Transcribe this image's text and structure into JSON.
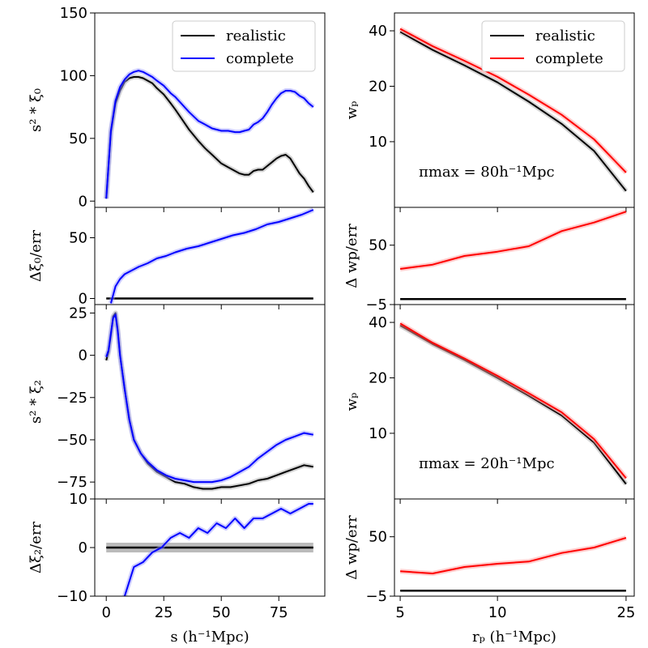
{
  "figure": {
    "left_xlabel": "s (h⁻¹Mpc)",
    "right_xlabel": "rₚ (h⁻¹Mpc)"
  },
  "colors": {
    "realistic": "#000000",
    "complete_left": "#0000ff",
    "complete_right": "#ff0000",
    "band_blue": "#9999ff",
    "band_gray": "#aaaaaa"
  },
  "chart_data": [
    {
      "id": "xi0",
      "type": "line",
      "ylabel": "s² * ξ₀",
      "xlim": [
        -5,
        95
      ],
      "ylim": [
        -5,
        150
      ],
      "yticks": [
        0,
        50,
        100,
        150
      ],
      "xticks": [
        0,
        25,
        50,
        75
      ],
      "legend": {
        "placement": "top-right",
        "entries": [
          "realistic",
          "complete"
        ]
      },
      "series": [
        {
          "name": "realistic",
          "color": "black",
          "x": [
            0,
            2,
            4,
            6,
            8,
            10,
            12,
            14,
            16,
            18,
            20,
            22,
            25,
            28,
            30,
            33,
            36,
            40,
            43,
            46,
            50,
            53,
            56,
            58,
            60,
            62,
            64,
            66,
            68,
            70,
            72,
            74,
            76,
            78,
            80,
            82,
            84,
            86,
            88,
            90
          ],
          "y": [
            2,
            55,
            78,
            88,
            95,
            98,
            99,
            99,
            98,
            96,
            94,
            90,
            85,
            78,
            73,
            65,
            57,
            48,
            42,
            37,
            30,
            27,
            24,
            22,
            21,
            21,
            24,
            25,
            25,
            28,
            31,
            34,
            36,
            37,
            34,
            28,
            22,
            18,
            12,
            7
          ]
        },
        {
          "name": "complete",
          "color": "blue",
          "x": [
            0,
            2,
            4,
            6,
            8,
            10,
            12,
            14,
            16,
            18,
            20,
            22,
            25,
            28,
            30,
            33,
            36,
            40,
            43,
            46,
            50,
            53,
            56,
            58,
            60,
            62,
            64,
            66,
            68,
            70,
            72,
            74,
            76,
            78,
            80,
            82,
            84,
            86,
            88,
            90
          ],
          "y": [
            2,
            56,
            80,
            91,
            97,
            101,
            103,
            104,
            103,
            101,
            99,
            96,
            92,
            86,
            83,
            77,
            71,
            64,
            61,
            58,
            56,
            56,
            55,
            55,
            56,
            57,
            61,
            63,
            66,
            71,
            77,
            82,
            86,
            88,
            88,
            87,
            84,
            82,
            78,
            75
          ]
        }
      ]
    },
    {
      "id": "dxi0",
      "type": "line",
      "ylabel": "Δξ₀/err",
      "xlim": [
        -5,
        95
      ],
      "ylim": [
        -5,
        75
      ],
      "yticks": [
        0,
        50
      ],
      "series": [
        {
          "name": "realistic",
          "color": "black",
          "x": [
            0,
            90
          ],
          "y": [
            0,
            0
          ]
        },
        {
          "name": "complete",
          "color": "blue",
          "x": [
            2,
            4,
            6,
            8,
            10,
            14,
            18,
            22,
            26,
            30,
            35,
            40,
            45,
            50,
            55,
            60,
            65,
            70,
            75,
            80,
            85,
            90
          ],
          "y": [
            -4,
            10,
            16,
            20,
            22,
            26,
            29,
            33,
            35,
            38,
            41,
            43,
            46,
            49,
            52,
            54,
            57,
            61,
            63,
            66,
            69,
            73
          ]
        }
      ]
    },
    {
      "id": "xi2",
      "type": "line",
      "ylabel": "s² * ξ₂",
      "xlim": [
        -5,
        95
      ],
      "ylim": [
        -85,
        30
      ],
      "yticks": [
        25,
        0,
        -25,
        -50,
        -75
      ],
      "series": [
        {
          "name": "realistic",
          "color": "black",
          "x": [
            0,
            1,
            2,
            3,
            4,
            5,
            6,
            8,
            10,
            12,
            15,
            18,
            22,
            26,
            30,
            34,
            38,
            42,
            46,
            50,
            54,
            58,
            62,
            66,
            70,
            74,
            78,
            82,
            86,
            90
          ],
          "y": [
            -3,
            2,
            12,
            23,
            25,
            15,
            0,
            -20,
            -38,
            -50,
            -58,
            -64,
            -69,
            -72,
            -75,
            -76,
            -78,
            -79,
            -79,
            -78,
            -78,
            -77,
            -76,
            -74,
            -73,
            -71,
            -69,
            -67,
            -65,
            -66
          ]
        },
        {
          "name": "complete",
          "color": "blue",
          "x": [
            0,
            1,
            2,
            3,
            4,
            5,
            6,
            8,
            10,
            12,
            15,
            18,
            22,
            26,
            30,
            34,
            38,
            42,
            46,
            50,
            54,
            58,
            62,
            66,
            70,
            74,
            78,
            82,
            86,
            90
          ],
          "y": [
            -1,
            3,
            13,
            22,
            24,
            14,
            0,
            -20,
            -38,
            -50,
            -58,
            -63,
            -68,
            -71,
            -73,
            -74,
            -75,
            -75,
            -75,
            -74,
            -72,
            -69,
            -66,
            -61,
            -57,
            -53,
            -50,
            -48,
            -46,
            -47
          ]
        }
      ]
    },
    {
      "id": "dxi2",
      "type": "line",
      "ylabel": "Δξ₂/err",
      "xlim": [
        -5,
        95
      ],
      "ylim": [
        -10,
        10
      ],
      "yticks": [
        10,
        0,
        -10
      ],
      "series": [
        {
          "name": "realistic",
          "color": "black",
          "x": [
            0,
            90
          ],
          "y": [
            0,
            0
          ]
        },
        {
          "name": "complete",
          "color": "blue",
          "x": [
            8,
            12,
            16,
            20,
            24,
            28,
            32,
            36,
            40,
            44,
            48,
            52,
            56,
            60,
            64,
            68,
            72,
            76,
            80,
            84,
            88,
            90
          ],
          "y": [
            -10,
            -4,
            -3,
            -1,
            0,
            2,
            3,
            2,
            4,
            3,
            5,
            4,
            6,
            4,
            6,
            6,
            7,
            8,
            7,
            8,
            9,
            9
          ]
        }
      ]
    },
    {
      "id": "wp80",
      "type": "line",
      "ylabel": "wₚ",
      "annotation": "πmax = 80h⁻¹Mpc",
      "xscale": "log",
      "yscale": "log",
      "xlim": [
        4.8,
        26.5
      ],
      "ylim": [
        4.4,
        50
      ],
      "yticks": [
        10,
        20,
        40
      ],
      "legend": {
        "placement": "top-right",
        "entries": [
          "realistic",
          "complete"
        ]
      },
      "series": [
        {
          "name": "realistic",
          "color": "black",
          "x": [
            5,
            6.3,
            7.9,
            10,
            12.5,
            15.8,
            19.9,
            25
          ],
          "y": [
            39.5,
            31.5,
            26,
            21,
            16.5,
            12.5,
            8.9,
            5.4
          ]
        },
        {
          "name": "complete",
          "color": "red",
          "x": [
            5,
            6.3,
            7.9,
            10,
            12.5,
            15.8,
            19.9,
            25
          ],
          "y": [
            41,
            33,
            27.5,
            22.5,
            18,
            14,
            10.3,
            6.8
          ]
        }
      ]
    },
    {
      "id": "dwp80",
      "type": "line",
      "ylabel": "Δ wp/err",
      "xscale": "log",
      "xlim": [
        4.8,
        26.5
      ],
      "ylim": [
        -5,
        85
      ],
      "yticks": [
        50,
        -5
      ],
      "series": [
        {
          "name": "realistic",
          "color": "black",
          "x": [
            5,
            25
          ],
          "y": [
            0,
            0
          ]
        },
        {
          "name": "complete",
          "color": "red",
          "x": [
            5,
            6.3,
            7.9,
            10,
            12.5,
            15.8,
            19.9,
            25
          ],
          "y": [
            28,
            32,
            40,
            44,
            49,
            63,
            71,
            81
          ]
        }
      ]
    },
    {
      "id": "wp20",
      "type": "line",
      "ylabel": "wₚ",
      "annotation": "πmax = 20h⁻¹Mpc",
      "xscale": "log",
      "yscale": "log",
      "xlim": [
        4.8,
        26.5
      ],
      "ylim": [
        4.4,
        50
      ],
      "yticks": [
        10,
        20,
        40
      ],
      "series": [
        {
          "name": "realistic",
          "color": "black",
          "x": [
            5,
            6.3,
            7.9,
            10,
            12.5,
            15.8,
            19.9,
            25
          ],
          "y": [
            38.5,
            30.5,
            25,
            20,
            16,
            12.5,
            8.9,
            5.3
          ]
        },
        {
          "name": "complete",
          "color": "red",
          "x": [
            5,
            6.3,
            7.9,
            10,
            12.5,
            15.8,
            19.9,
            25
          ],
          "y": [
            39.5,
            31,
            25.5,
            20.5,
            16.5,
            13,
            9.3,
            5.7
          ]
        }
      ]
    },
    {
      "id": "dwp20",
      "type": "line",
      "ylabel": "Δ wp/err",
      "xscale": "log",
      "xlim": [
        4.8,
        26.5
      ],
      "ylim": [
        -5,
        85
      ],
      "xticks": [
        5,
        10,
        25
      ],
      "yticks": [
        50,
        -5
      ],
      "series": [
        {
          "name": "realistic",
          "color": "black",
          "x": [
            5,
            25
          ],
          "y": [
            0,
            0
          ]
        },
        {
          "name": "complete",
          "color": "red",
          "x": [
            5,
            6.3,
            7.9,
            10,
            12.5,
            15.8,
            19.9,
            25
          ],
          "y": [
            18,
            16,
            22,
            25,
            27,
            35,
            40,
            49
          ]
        }
      ]
    }
  ]
}
